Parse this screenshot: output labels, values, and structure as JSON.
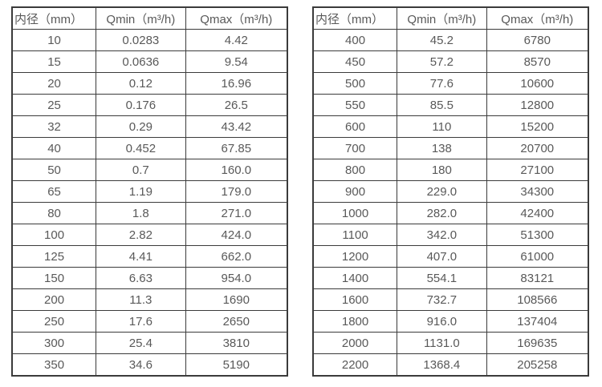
{
  "page": {
    "background_color": "#ffffff",
    "text_color": "#595959",
    "border_color": "#3b3b3b"
  },
  "tables": [
    {
      "name": "flow-table-small-diameters",
      "headers": [
        "内径（mm）",
        "Qmin（m³/h)",
        "Qmax（m³/h)"
      ],
      "rows": [
        [
          "10",
          "0.0283",
          "4.42"
        ],
        [
          "15",
          "0.0636",
          "9.54"
        ],
        [
          "20",
          "0.12",
          "16.96"
        ],
        [
          "25",
          "0.176",
          "26.5"
        ],
        [
          "32",
          "0.29",
          "43.42"
        ],
        [
          "40",
          "0.452",
          "67.85"
        ],
        [
          "50",
          "0.7",
          "160.0"
        ],
        [
          "65",
          "1.19",
          "179.0"
        ],
        [
          "80",
          "1.8",
          "271.0"
        ],
        [
          "100",
          "2.82",
          "424.0"
        ],
        [
          "125",
          "4.41",
          "662.0"
        ],
        [
          "150",
          "6.63",
          "954.0"
        ],
        [
          "200",
          "11.3",
          "1690"
        ],
        [
          "250",
          "17.6",
          "2650"
        ],
        [
          "300",
          "25.4",
          "3810"
        ],
        [
          "350",
          "34.6",
          "5190"
        ]
      ]
    },
    {
      "name": "flow-table-large-diameters",
      "headers": [
        "内径（mm）",
        "Qmin（m³/h)",
        "Qmax（m³/h)"
      ],
      "rows": [
        [
          "400",
          "45.2",
          "6780"
        ],
        [
          "450",
          "57.2",
          "8570"
        ],
        [
          "500",
          "77.6",
          "10600"
        ],
        [
          "550",
          "85.5",
          "12800"
        ],
        [
          "600",
          "110",
          "15200"
        ],
        [
          "700",
          "138",
          "20700"
        ],
        [
          "800",
          "180",
          "27100"
        ],
        [
          "900",
          "229.0",
          "34300"
        ],
        [
          "1000",
          "282.0",
          "42400"
        ],
        [
          "1100",
          "342.0",
          "51300"
        ],
        [
          "1200",
          "407.0",
          "61000"
        ],
        [
          "1400",
          "554.1",
          "83121"
        ],
        [
          "1600",
          "732.7",
          "108566"
        ],
        [
          "1800",
          "916.0",
          "137404"
        ],
        [
          "2000",
          "1131.0",
          "169635"
        ],
        [
          "2200",
          "1368.4",
          "205258"
        ]
      ]
    }
  ]
}
